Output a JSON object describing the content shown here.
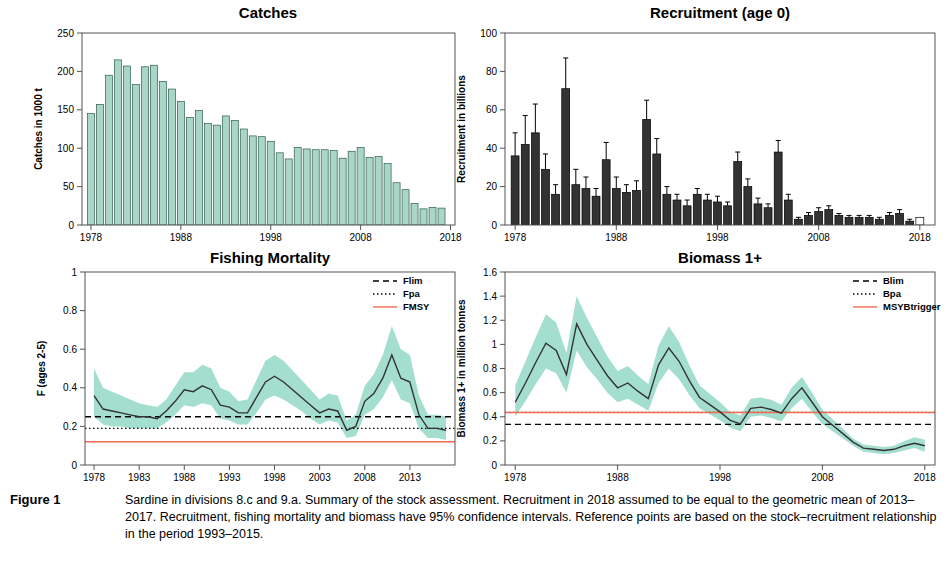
{
  "chart_data": [
    {
      "type": "bar",
      "title": "Catches",
      "y_label": "Catches in 1000 t",
      "x": [
        1978,
        1979,
        1980,
        1981,
        1982,
        1983,
        1984,
        1985,
        1986,
        1987,
        1988,
        1989,
        1990,
        1991,
        1992,
        1993,
        1994,
        1995,
        1996,
        1997,
        1998,
        1999,
        2000,
        2001,
        2002,
        2003,
        2004,
        2005,
        2006,
        2007,
        2008,
        2009,
        2010,
        2011,
        2012,
        2013,
        2014,
        2015,
        2016,
        2017
      ],
      "values": [
        145,
        157,
        195,
        215,
        207,
        183,
        206,
        208,
        187,
        177,
        161,
        140,
        149,
        132,
        130,
        142,
        136,
        125,
        116,
        115,
        109,
        94,
        86,
        101,
        99,
        98,
        98,
        97,
        87,
        96,
        101,
        88,
        89,
        80,
        55,
        46,
        28,
        21,
        23,
        22
      ],
      "color": "#a9d6c6",
      "xlim": [
        1977,
        2018.5
      ],
      "xticks": [
        1978,
        1988,
        1998,
        2008,
        2018
      ],
      "ylim": [
        0,
        250
      ],
      "yticks": [
        0,
        50,
        100,
        150,
        200,
        250
      ]
    },
    {
      "type": "bar",
      "title": "Recruitment (age 0)",
      "y_label": "Recruitment in billions",
      "x": [
        1978,
        1979,
        1980,
        1981,
        1982,
        1983,
        1984,
        1985,
        1986,
        1987,
        1988,
        1989,
        1990,
        1991,
        1992,
        1993,
        1994,
        1995,
        1996,
        1997,
        1998,
        1999,
        2000,
        2001,
        2002,
        2003,
        2004,
        2005,
        2006,
        2007,
        2008,
        2009,
        2010,
        2011,
        2012,
        2013,
        2014,
        2015,
        2016,
        2017,
        2018
      ],
      "values": [
        36,
        42,
        48,
        29,
        16,
        71,
        21,
        19,
        15,
        34,
        19,
        17,
        18,
        55,
        37,
        16,
        13,
        10,
        16,
        13,
        12,
        10,
        33,
        20,
        11,
        9,
        38,
        13,
        3,
        5,
        7,
        8,
        5,
        4,
        4,
        4,
        3,
        5,
        6,
        2,
        4
      ],
      "errors": [
        12,
        15,
        15,
        8,
        5,
        16,
        8,
        6,
        4,
        9,
        6,
        4,
        5,
        10,
        8,
        4,
        3,
        3,
        3,
        3,
        3,
        2,
        5,
        4,
        3,
        2,
        6,
        3,
        1,
        1.5,
        2,
        2,
        1,
        1,
        1,
        1,
        1,
        1.5,
        2,
        1,
        null
      ],
      "colors": [
        "#333333",
        "#333333",
        "#333333",
        "#333333",
        "#333333",
        "#333333",
        "#333333",
        "#333333",
        "#333333",
        "#333333",
        "#333333",
        "#333333",
        "#333333",
        "#333333",
        "#333333",
        "#333333",
        "#333333",
        "#333333",
        "#333333",
        "#333333",
        "#333333",
        "#333333",
        "#333333",
        "#333333",
        "#333333",
        "#333333",
        "#333333",
        "#333333",
        "#333333",
        "#333333",
        "#333333",
        "#333333",
        "#333333",
        "#333333",
        "#333333",
        "#333333",
        "#333333",
        "#333333",
        "#333333",
        "#333333",
        "#ffffff"
      ],
      "xlim": [
        1977,
        2019.5
      ],
      "xticks": [
        1978,
        1988,
        1998,
        2008,
        2018
      ],
      "ylim": [
        0,
        100
      ],
      "yticks": [
        0,
        20,
        40,
        60,
        80,
        100
      ]
    },
    {
      "type": "line",
      "title": "Fishing Mortality",
      "y_label": "F (ages 2-5)",
      "x": [
        1978,
        1979,
        1980,
        1981,
        1982,
        1983,
        1984,
        1985,
        1986,
        1987,
        1988,
        1989,
        1990,
        1991,
        1992,
        1993,
        1994,
        1995,
        1996,
        1997,
        1998,
        1999,
        2000,
        2001,
        2002,
        2003,
        2004,
        2005,
        2006,
        2007,
        2008,
        2009,
        2010,
        2011,
        2012,
        2013,
        2014,
        2015,
        2016,
        2017
      ],
      "series": [
        {
          "color": "#333333",
          "values": [
            0.36,
            0.29,
            0.28,
            0.27,
            0.26,
            0.25,
            0.25,
            0.24,
            0.28,
            0.33,
            0.39,
            0.38,
            0.41,
            0.39,
            0.31,
            0.3,
            0.27,
            0.27,
            0.35,
            0.43,
            0.46,
            0.43,
            0.39,
            0.35,
            0.31,
            0.27,
            0.29,
            0.28,
            0.18,
            0.2,
            0.33,
            0.37,
            0.45,
            0.57,
            0.45,
            0.43,
            0.26,
            0.19,
            0.19,
            0.18
          ],
          "upper": [
            0.5,
            0.4,
            0.38,
            0.36,
            0.34,
            0.32,
            0.31,
            0.3,
            0.34,
            0.41,
            0.48,
            0.48,
            0.52,
            0.5,
            0.4,
            0.38,
            0.33,
            0.34,
            0.44,
            0.54,
            0.57,
            0.54,
            0.49,
            0.44,
            0.39,
            0.34,
            0.37,
            0.36,
            0.23,
            0.26,
            0.41,
            0.47,
            0.57,
            0.72,
            0.6,
            0.57,
            0.36,
            0.26,
            0.26,
            0.25
          ],
          "lower": [
            0.25,
            0.21,
            0.2,
            0.2,
            0.19,
            0.19,
            0.19,
            0.19,
            0.22,
            0.26,
            0.31,
            0.3,
            0.32,
            0.31,
            0.24,
            0.23,
            0.21,
            0.21,
            0.27,
            0.34,
            0.36,
            0.34,
            0.31,
            0.28,
            0.24,
            0.21,
            0.23,
            0.22,
            0.14,
            0.15,
            0.26,
            0.29,
            0.35,
            0.44,
            0.34,
            0.32,
            0.19,
            0.14,
            0.14,
            0.13
          ]
        }
      ],
      "reference_lines": [
        {
          "name": "Flim",
          "value": 0.25,
          "color": "#000000",
          "line_style": "dashed"
        },
        {
          "name": "Fpa",
          "value": 0.19,
          "color": "#000000",
          "line_style": "dotted"
        },
        {
          "name": "FMSY",
          "value": 0.12,
          "color": "#f26b50",
          "line_style": "solid"
        }
      ],
      "legend": "top-right",
      "xlim": [
        1977,
        2018
      ],
      "xticks": [
        1978,
        1983,
        1988,
        1993,
        1998,
        2003,
        2008,
        2013
      ],
      "ylim": [
        0,
        1
      ],
      "yticks": [
        0,
        0.2,
        0.4,
        0.6,
        0.8,
        1
      ]
    },
    {
      "type": "line",
      "title": "Biomass 1+",
      "y_label": "Biomass 1+ in million tonnes",
      "x": [
        1978,
        1979,
        1980,
        1981,
        1982,
        1983,
        1984,
        1985,
        1986,
        1987,
        1988,
        1989,
        1990,
        1991,
        1992,
        1993,
        1994,
        1995,
        1996,
        1997,
        1998,
        1999,
        2000,
        2001,
        2002,
        2003,
        2004,
        2005,
        2006,
        2007,
        2008,
        2009,
        2010,
        2011,
        2012,
        2013,
        2014,
        2015,
        2016,
        2017,
        2018
      ],
      "series": [
        {
          "color": "#333333",
          "values": [
            0.52,
            0.68,
            0.85,
            1.01,
            0.95,
            0.75,
            1.17,
            1.0,
            0.87,
            0.74,
            0.64,
            0.68,
            0.61,
            0.55,
            0.83,
            0.97,
            0.86,
            0.7,
            0.56,
            0.5,
            0.44,
            0.37,
            0.34,
            0.47,
            0.48,
            0.46,
            0.43,
            0.55,
            0.64,
            0.52,
            0.4,
            0.33,
            0.26,
            0.19,
            0.14,
            0.13,
            0.12,
            0.13,
            0.16,
            0.18,
            0.16
          ],
          "upper": [
            0.66,
            0.86,
            1.06,
            1.25,
            1.18,
            0.93,
            1.4,
            1.22,
            1.06,
            0.9,
            0.78,
            0.82,
            0.74,
            0.67,
            0.99,
            1.15,
            1.02,
            0.83,
            0.66,
            0.59,
            0.52,
            0.44,
            0.41,
            0.55,
            0.56,
            0.54,
            0.5,
            0.64,
            0.73,
            0.6,
            0.46,
            0.38,
            0.3,
            0.22,
            0.17,
            0.16,
            0.15,
            0.16,
            0.2,
            0.23,
            0.21
          ],
          "lower": [
            0.4,
            0.53,
            0.67,
            0.8,
            0.76,
            0.6,
            0.95,
            0.81,
            0.71,
            0.6,
            0.52,
            0.55,
            0.5,
            0.45,
            0.68,
            0.8,
            0.71,
            0.58,
            0.47,
            0.42,
            0.37,
            0.31,
            0.28,
            0.4,
            0.41,
            0.39,
            0.36,
            0.47,
            0.55,
            0.44,
            0.34,
            0.28,
            0.22,
            0.16,
            0.11,
            0.1,
            0.09,
            0.1,
            0.12,
            0.14,
            0.11
          ]
        }
      ],
      "reference_lines": [
        {
          "name": "Blim",
          "value": 0.337,
          "color": "#000000",
          "line_style": "dashed"
        },
        {
          "name": "Bpa",
          "value": 0.436,
          "color": "#000000",
          "line_style": "dotted"
        },
        {
          "name": "MSYBtrigger",
          "value": 0.436,
          "color": "#f26b50",
          "line_style": "solid"
        }
      ],
      "legend": "top-right",
      "xlim": [
        1977,
        2019
      ],
      "xticks": [
        1978,
        1988,
        1998,
        2008,
        2018
      ],
      "ylim": [
        0,
        1.6
      ],
      "yticks": [
        0,
        0.2,
        0.4,
        0.6,
        0.8,
        1,
        1.2,
        1.4,
        1.6
      ]
    }
  ],
  "caption": {
    "label": "Figure 1",
    "text": "Sardine in divisions 8.c and 9.a. Summary of the stock assessment. Recruitment in 2018 assumed to be equal to the geometric mean of 2013–2017. Recruitment, fishing mortality and biomass have 95% confidence intervals. Reference points are based on the stock–recruitment relationship in the period 1993–2015."
  }
}
